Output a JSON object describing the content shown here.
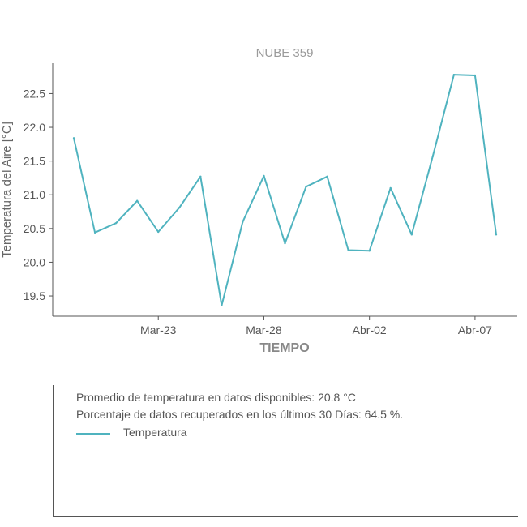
{
  "chart_data": {
    "type": "line",
    "title": "NUBE 359",
    "xlabel": "TIEMPO",
    "ylabel": "Temperatura del Aire [°C]",
    "x_tick_labels": [
      "Mar-23",
      "Mar-28",
      "Abr-02",
      "Abr-07"
    ],
    "x_tick_dates": [
      "2023-03-23",
      "2023-03-28",
      "2023-04-02",
      "2023-04-07"
    ],
    "xlim": [
      "2023-03-18",
      "2023-04-09"
    ],
    "ylim": [
      19.2,
      22.95
    ],
    "y_ticks": [
      19.5,
      20.0,
      20.5,
      21.0,
      21.5,
      22.0,
      22.5
    ],
    "grid": false,
    "color": "#4fb3bf",
    "series": [
      {
        "name": "Temperatura",
        "x": [
          "2023-03-19",
          "2023-03-20",
          "2023-03-21",
          "2023-03-22",
          "2023-03-23",
          "2023-03-24",
          "2023-03-25",
          "2023-03-26",
          "2023-03-27",
          "2023-03-28",
          "2023-03-29",
          "2023-03-30",
          "2023-03-31",
          "2023-04-01",
          "2023-04-02",
          "2023-04-03",
          "2023-04-04",
          "2023-04-05",
          "2023-04-06",
          "2023-04-07",
          "2023-04-08"
        ],
        "values": [
          21.84,
          20.44,
          20.58,
          20.91,
          20.45,
          20.81,
          21.27,
          19.36,
          20.6,
          21.28,
          20.28,
          21.12,
          21.27,
          20.18,
          20.17,
          21.1,
          20.41,
          21.57,
          22.78,
          22.77,
          20.41
        ]
      }
    ]
  },
  "info": {
    "avg_line": "Promedio de temperatura en datos disponibles: 20.8 °C",
    "pct_line": "Porcentaje de datos recuperados en los últimos 30 Días: 64.5 %.",
    "legend_label": "Temperatura"
  }
}
